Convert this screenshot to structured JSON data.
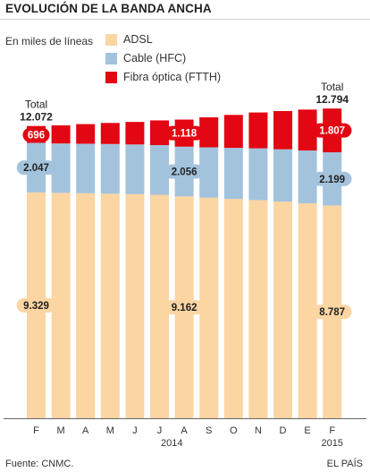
{
  "header": {
    "title": "EVOLUCIÓN DE LA BANDA ANCHA"
  },
  "subtitle": "En miles de líneas",
  "legend": [
    {
      "label": "ADSL",
      "color": "#fbd5a2"
    },
    {
      "label": "Cable (HFC)",
      "color": "#a3c3dd"
    },
    {
      "label": "Fibra óptica (FTTH)",
      "color": "#e30613"
    }
  ],
  "footer": {
    "source": "Fuente: CNMC.",
    "brand": "EL PAÍS"
  },
  "chart_data": {
    "type": "bar",
    "stacked": true,
    "categories": [
      "F",
      "M",
      "A",
      "M",
      "J",
      "J",
      "A",
      "S",
      "O",
      "N",
      "D",
      "E",
      "F"
    ],
    "year_labels": [
      {
        "label": "2014",
        "position_index": 5.5
      },
      {
        "label": "2015",
        "position_index": 12
      }
    ],
    "series": [
      {
        "name": "ADSL",
        "color": "#fbd5a2",
        "values": [
          9329,
          9310,
          9295,
          9280,
          9260,
          9230,
          9162,
          9110,
          9060,
          9010,
          8950,
          8880,
          8787
        ]
      },
      {
        "name": "Cable (HFC)",
        "color": "#a3c3dd",
        "values": [
          2047,
          2040,
          2045,
          2048,
          2050,
          2053,
          2056,
          2080,
          2110,
          2140,
          2160,
          2180,
          2199
        ]
      },
      {
        "name": "Fibra óptica (FTTH)",
        "color": "#e30613",
        "values": [
          696,
          750,
          810,
          870,
          930,
          1020,
          1118,
          1240,
          1360,
          1480,
          1580,
          1690,
          1807
        ]
      }
    ],
    "data_labels": [
      {
        "category_index": 0,
        "series": "ADSL",
        "text": "9.329"
      },
      {
        "category_index": 0,
        "series": "Cable (HFC)",
        "text": "2.047"
      },
      {
        "category_index": 0,
        "series": "Fibra óptica (FTTH)",
        "text": "696"
      },
      {
        "category_index": 6,
        "series": "ADSL",
        "text": "9.162"
      },
      {
        "category_index": 6,
        "series": "Cable (HFC)",
        "text": "2.056"
      },
      {
        "category_index": 6,
        "series": "Fibra óptica (FTTH)",
        "text": "1.118"
      },
      {
        "category_index": 12,
        "series": "ADSL",
        "text": "8.787"
      },
      {
        "category_index": 12,
        "series": "Cable (HFC)",
        "text": "2.199"
      },
      {
        "category_index": 12,
        "series": "Fibra óptica (FTTH)",
        "text": "1.807"
      }
    ],
    "totals": [
      {
        "category_index": 0,
        "label": "Total",
        "value_text": "12.072"
      },
      {
        "category_index": 12,
        "label": "Total",
        "value_text": "12.794"
      }
    ],
    "ylim": [
      0,
      12800
    ],
    "grid": false,
    "legend_position": "top"
  }
}
